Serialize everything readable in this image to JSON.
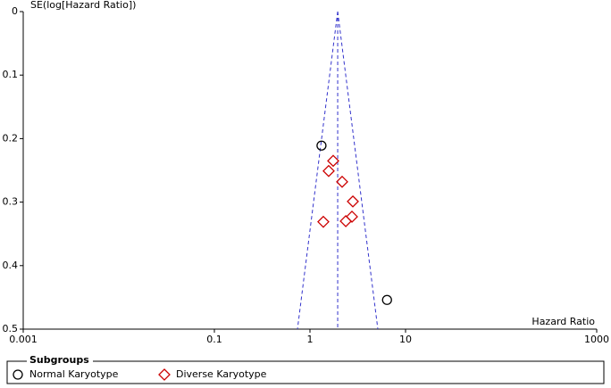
{
  "chart_data": {
    "type": "funnel",
    "y_label": "SE(log[Hazard Ratio])",
    "x_label": "Hazard Ratio",
    "xlim": [
      0.001,
      1000
    ],
    "xticks": [
      0.001,
      0.1,
      1,
      10,
      1000
    ],
    "x_log": true,
    "ylim": [
      0,
      0.5
    ],
    "yticks": [
      0,
      0.1,
      0.2,
      0.3,
      0.4,
      0.5
    ],
    "y_inverted": true,
    "funnel": {
      "center": 1.95,
      "lower": 0.74,
      "upper": 5.13,
      "color": "#3333cc"
    },
    "legend_title": "Subgroups",
    "series": [
      {
        "name": "Normal Karyotype",
        "color": "#000000",
        "marker": "circle",
        "x": [
          1.32,
          6.4
        ],
        "values": [
          0.211,
          0.454
        ]
      },
      {
        "name": "Diverse Karyotype",
        "color": "#cc0000",
        "marker": "diamond",
        "x": [
          1.75,
          1.57,
          2.17,
          2.81,
          2.75,
          2.37,
          1.38
        ],
        "values": [
          0.235,
          0.251,
          0.268,
          0.299,
          0.323,
          0.33,
          0.331
        ]
      }
    ]
  }
}
